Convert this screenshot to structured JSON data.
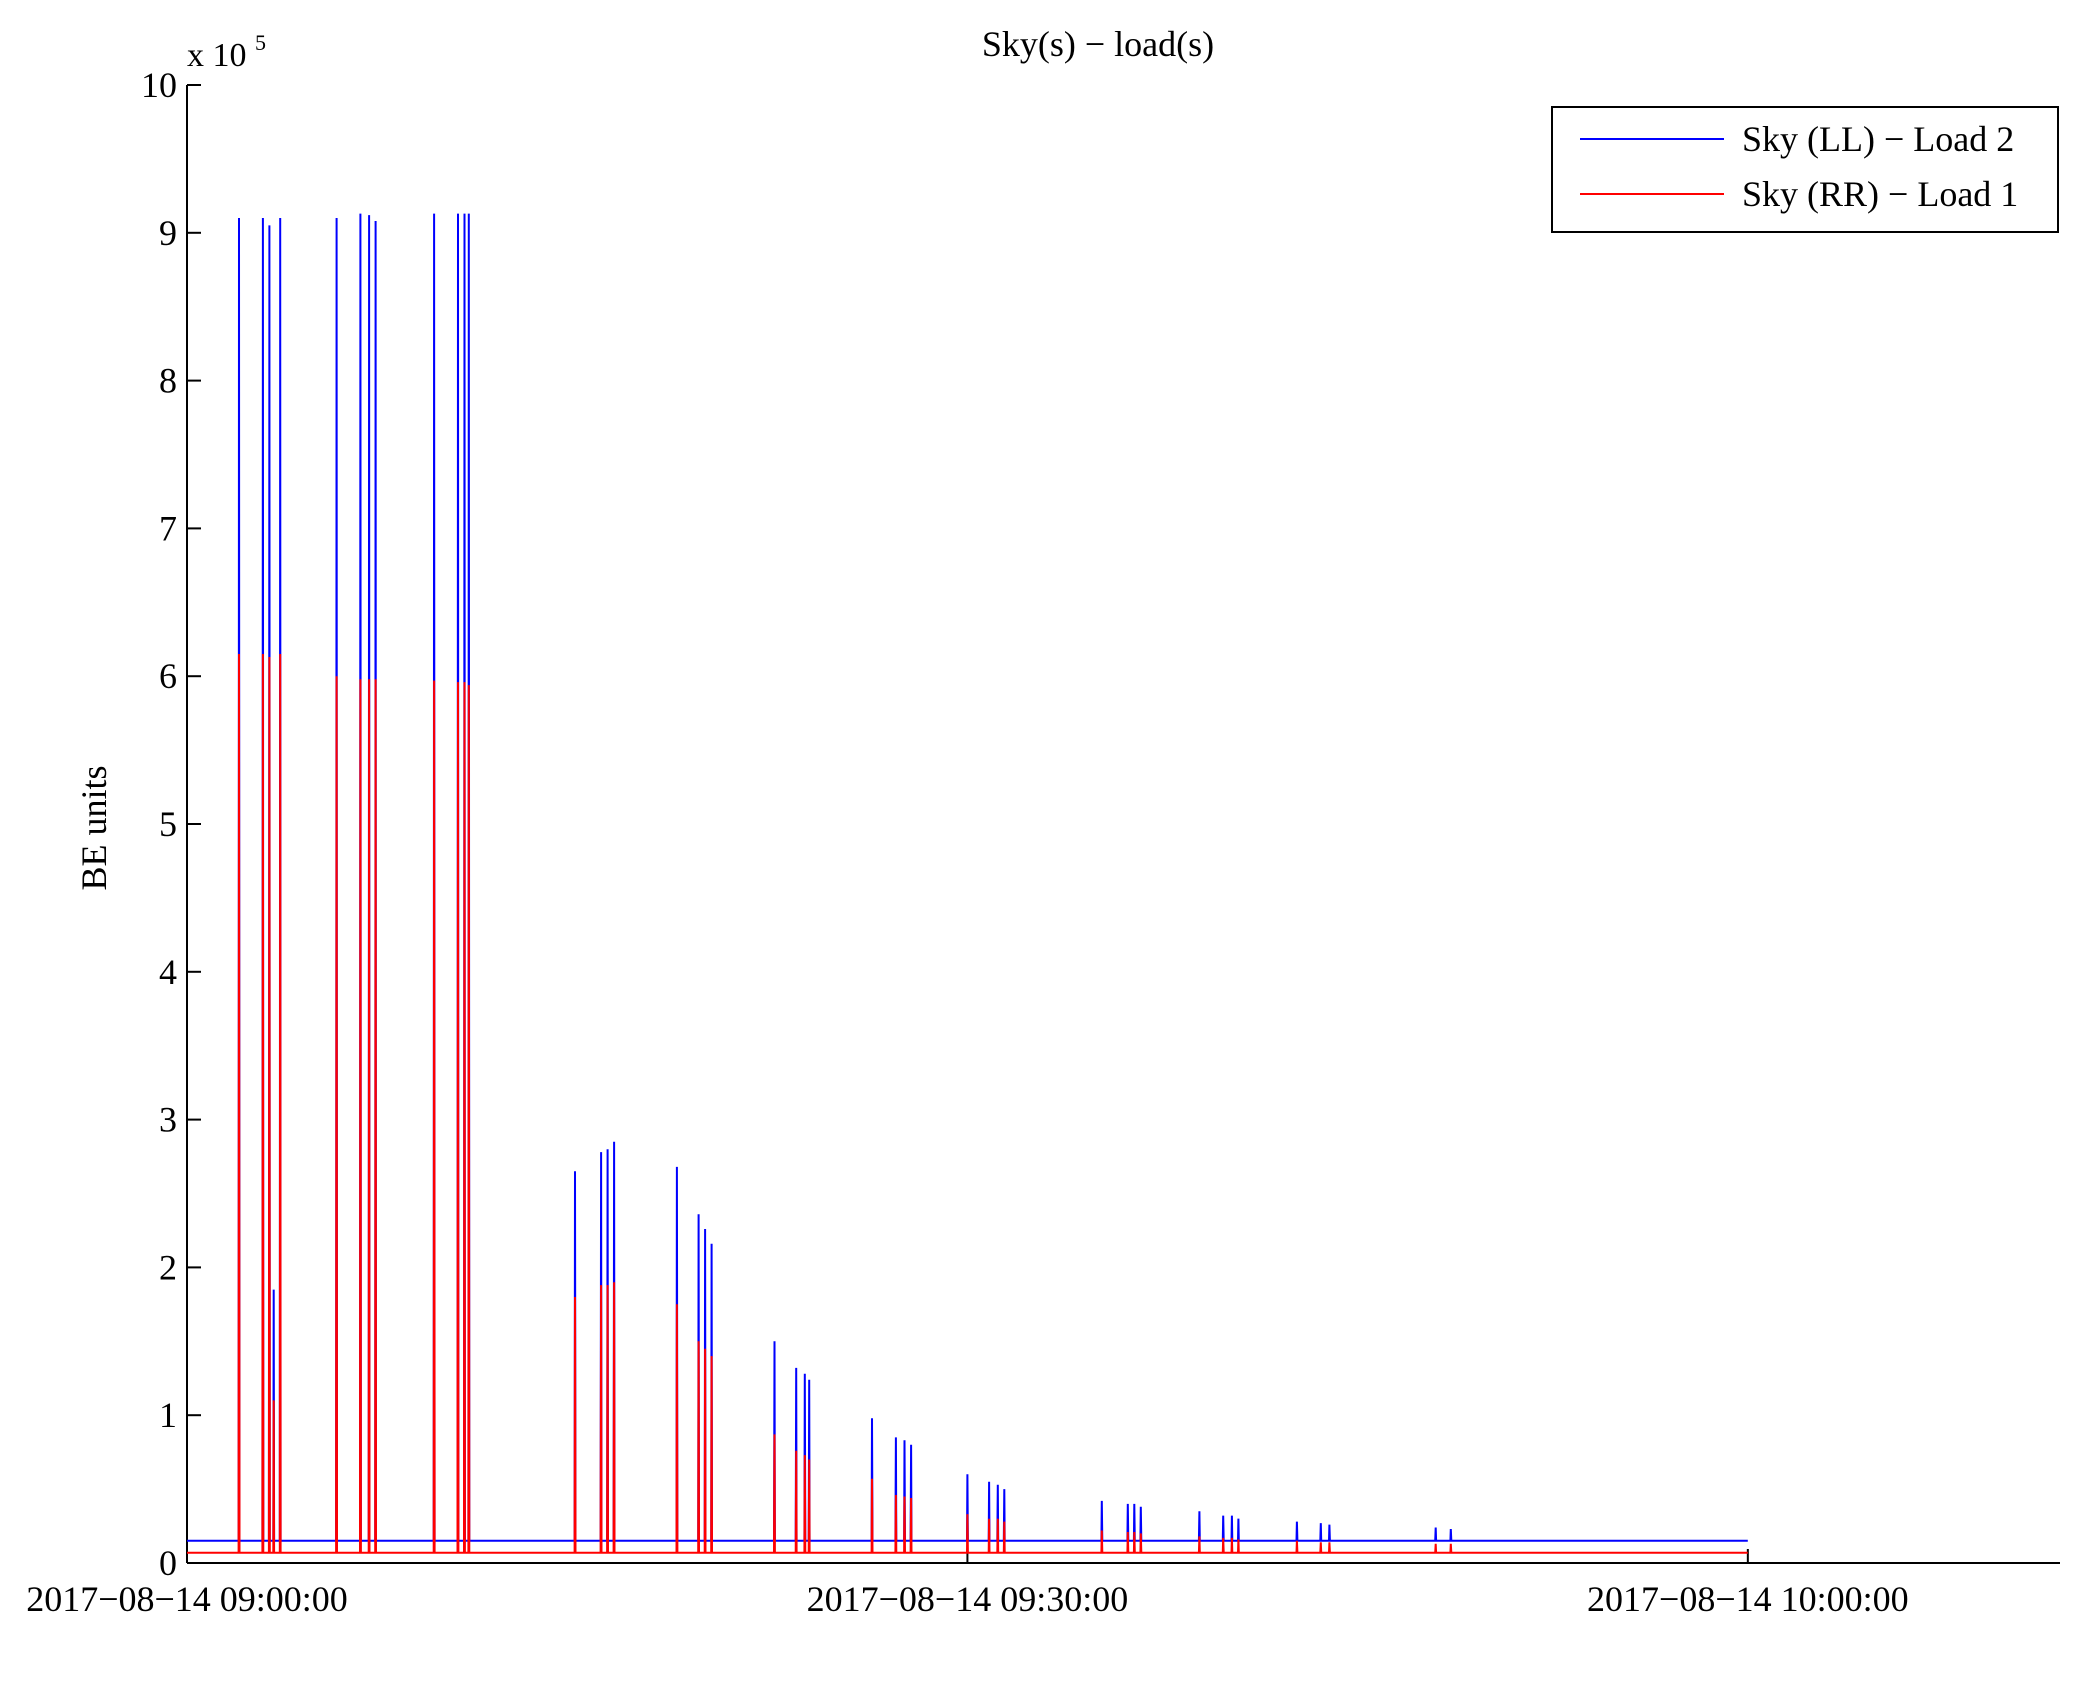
{
  "chart_data": {
    "type": "line",
    "title": "Sky(s) − load(s)",
    "xlabel": "",
    "ylabel": "BE units",
    "y_multiplier": "x 10",
    "y_multiplier_exponent": "5",
    "ylim": [
      0,
      1000000
    ],
    "xlim": [
      "2017-08-14 09:00:00",
      "2017-08-14 10:12:00"
    ],
    "y_ticks": [
      0,
      1,
      2,
      3,
      4,
      5,
      6,
      7,
      8,
      9,
      10
    ],
    "x_ticks": [
      "2017−08−14 09:00:00",
      "2017−08−14 09:30:00",
      "2017−08−14 10:00:00"
    ],
    "grid": false,
    "legend": {
      "position": "top-right"
    },
    "series": [
      {
        "name": "Sky (LL) − Load 2",
        "color": "#0000ff",
        "baseline": 15000,
        "spikes": [
          [
            "2017-08-14 09:02:00",
            910000
          ],
          [
            "2017-08-14 09:02:55",
            910000
          ],
          [
            "2017-08-14 09:03:10",
            905000
          ],
          [
            "2017-08-14 09:03:20",
            185000
          ],
          [
            "2017-08-14 09:03:35",
            910000
          ],
          [
            "2017-08-14 09:05:45",
            910000
          ],
          [
            "2017-08-14 09:06:40",
            913000
          ],
          [
            "2017-08-14 09:07:00",
            912000
          ],
          [
            "2017-08-14 09:07:15",
            908000
          ],
          [
            "2017-08-14 09:09:30",
            913000
          ],
          [
            "2017-08-14 09:10:25",
            913000
          ],
          [
            "2017-08-14 09:10:40",
            913000
          ],
          [
            "2017-08-14 09:10:50",
            913000
          ],
          [
            "2017-08-14 09:14:55",
            265000
          ],
          [
            "2017-08-14 09:15:55",
            278000
          ],
          [
            "2017-08-14 09:16:10",
            280000
          ],
          [
            "2017-08-14 09:16:25",
            285000
          ],
          [
            "2017-08-14 09:18:50",
            268000
          ],
          [
            "2017-08-14 09:19:40",
            236000
          ],
          [
            "2017-08-14 09:19:55",
            226000
          ],
          [
            "2017-08-14 09:20:10",
            216000
          ],
          [
            "2017-08-14 09:22:35",
            150000
          ],
          [
            "2017-08-14 09:23:25",
            132000
          ],
          [
            "2017-08-14 09:23:45",
            128000
          ],
          [
            "2017-08-14 09:23:55",
            124000
          ],
          [
            "2017-08-14 09:26:20",
            98000
          ],
          [
            "2017-08-14 09:27:15",
            85000
          ],
          [
            "2017-08-14 09:27:35",
            83000
          ],
          [
            "2017-08-14 09:27:50",
            80000
          ],
          [
            "2017-08-14 09:30:00",
            60000
          ],
          [
            "2017-08-14 09:30:50",
            55000
          ],
          [
            "2017-08-14 09:31:10",
            53000
          ],
          [
            "2017-08-14 09:31:25",
            50000
          ],
          [
            "2017-08-14 09:35:10",
            42000
          ],
          [
            "2017-08-14 09:36:10",
            40000
          ],
          [
            "2017-08-14 09:36:25",
            40000
          ],
          [
            "2017-08-14 09:36:40",
            38000
          ],
          [
            "2017-08-14 09:38:55",
            35000
          ],
          [
            "2017-08-14 09:39:50",
            32000
          ],
          [
            "2017-08-14 09:40:10",
            32000
          ],
          [
            "2017-08-14 09:40:25",
            30000
          ],
          [
            "2017-08-14 09:42:40",
            28000
          ],
          [
            "2017-08-14 09:43:35",
            27000
          ],
          [
            "2017-08-14 09:43:55",
            26000
          ],
          [
            "2017-08-14 09:48:00",
            24000
          ],
          [
            "2017-08-14 09:48:35",
            23000
          ]
        ]
      },
      {
        "name": "Sky (RR) − Load 1",
        "color": "#ff0000",
        "baseline": 7000,
        "spikes": [
          [
            "2017-08-14 09:02:00",
            615000
          ],
          [
            "2017-08-14 09:02:55",
            615000
          ],
          [
            "2017-08-14 09:03:10",
            613000
          ],
          [
            "2017-08-14 09:03:20",
            110000
          ],
          [
            "2017-08-14 09:03:35",
            615000
          ],
          [
            "2017-08-14 09:05:45",
            600000
          ],
          [
            "2017-08-14 09:06:40",
            598000
          ],
          [
            "2017-08-14 09:07:00",
            598000
          ],
          [
            "2017-08-14 09:07:15",
            598000
          ],
          [
            "2017-08-14 09:09:30",
            597000
          ],
          [
            "2017-08-14 09:10:25",
            596000
          ],
          [
            "2017-08-14 09:10:40",
            596000
          ],
          [
            "2017-08-14 09:10:50",
            594000
          ],
          [
            "2017-08-14 09:14:55",
            180000
          ],
          [
            "2017-08-14 09:15:55",
            188000
          ],
          [
            "2017-08-14 09:16:10",
            188000
          ],
          [
            "2017-08-14 09:16:25",
            190000
          ],
          [
            "2017-08-14 09:18:50",
            175000
          ],
          [
            "2017-08-14 09:19:40",
            150000
          ],
          [
            "2017-08-14 09:19:55",
            145000
          ],
          [
            "2017-08-14 09:20:10",
            140000
          ],
          [
            "2017-08-14 09:22:35",
            87000
          ],
          [
            "2017-08-14 09:23:25",
            76000
          ],
          [
            "2017-08-14 09:23:45",
            73000
          ],
          [
            "2017-08-14 09:23:55",
            70000
          ],
          [
            "2017-08-14 09:26:20",
            57000
          ],
          [
            "2017-08-14 09:27:15",
            46000
          ],
          [
            "2017-08-14 09:27:35",
            45000
          ],
          [
            "2017-08-14 09:27:50",
            44000
          ],
          [
            "2017-08-14 09:30:00",
            33000
          ],
          [
            "2017-08-14 09:30:50",
            30000
          ],
          [
            "2017-08-14 09:31:10",
            30000
          ],
          [
            "2017-08-14 09:31:25",
            28000
          ],
          [
            "2017-08-14 09:35:10",
            22000
          ],
          [
            "2017-08-14 09:36:10",
            21000
          ],
          [
            "2017-08-14 09:36:25",
            21000
          ],
          [
            "2017-08-14 09:36:40",
            20000
          ],
          [
            "2017-08-14 09:38:55",
            18000
          ],
          [
            "2017-08-14 09:39:50",
            17000
          ],
          [
            "2017-08-14 09:40:10",
            17000
          ],
          [
            "2017-08-14 09:40:25",
            16000
          ],
          [
            "2017-08-14 09:42:40",
            15000
          ],
          [
            "2017-08-14 09:43:35",
            14000
          ],
          [
            "2017-08-14 09:43:55",
            14000
          ],
          [
            "2017-08-14 09:48:00",
            13000
          ],
          [
            "2017-08-14 09:48:35",
            13000
          ]
        ]
      }
    ]
  }
}
